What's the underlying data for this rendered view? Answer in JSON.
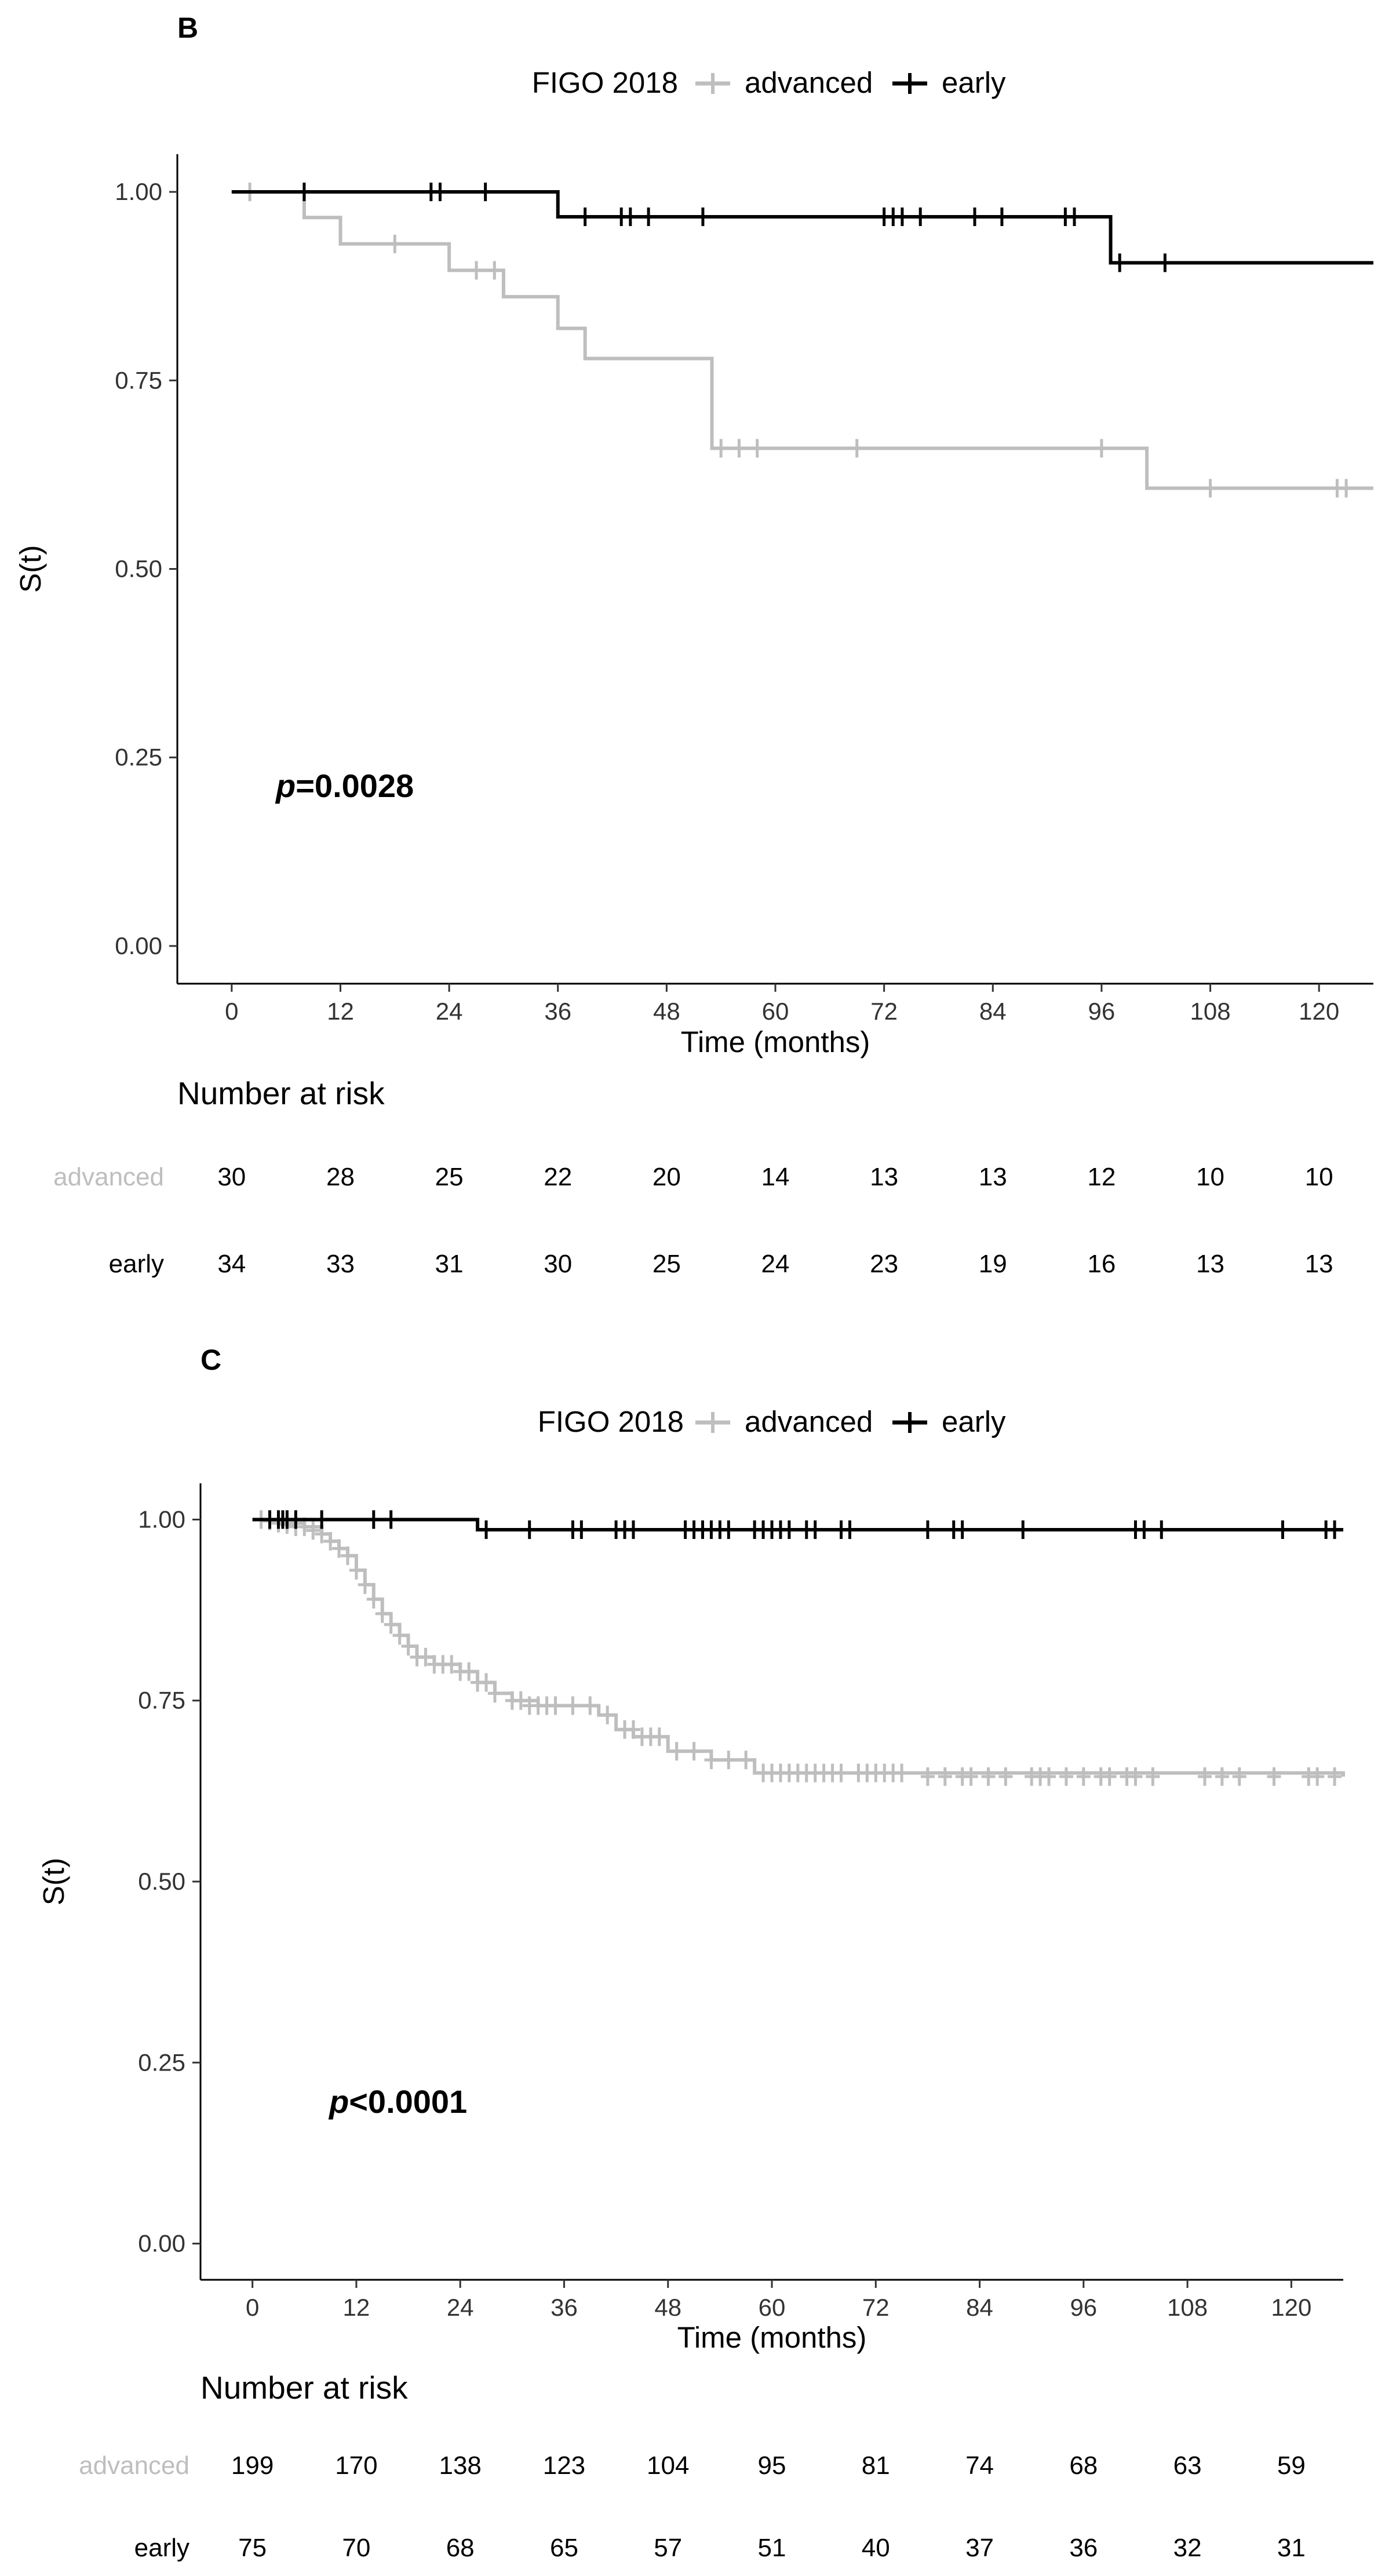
{
  "colors": {
    "advanced": "#bebebe",
    "early": "#000000"
  },
  "panels": [
    {
      "id": "B",
      "letter": "B",
      "legend": {
        "title": "FIGO 2018",
        "labels": [
          "advanced",
          "early"
        ]
      },
      "xlabel": "Time (months)",
      "ylabel": "S(t)",
      "p_value": {
        "p": "p",
        "rest": "=0.0028"
      },
      "risk_table": {
        "title": "Number at risk",
        "labels": [
          "advanced",
          "early"
        ],
        "times": [
          0,
          12,
          24,
          36,
          48,
          60,
          72,
          84,
          96,
          108,
          120
        ],
        "advanced": [
          "30",
          "28",
          "25",
          "22",
          "20",
          "14",
          "13",
          "13",
          "12",
          "10",
          "10"
        ],
        "early": [
          "34",
          "33",
          "31",
          "30",
          "25",
          "24",
          "23",
          "19",
          "16",
          "13",
          "13"
        ]
      }
    },
    {
      "id": "C",
      "letter": "C",
      "legend": {
        "title": "FIGO 2018",
        "labels": [
          "advanced",
          "early"
        ]
      },
      "xlabel": "Time (months)",
      "ylabel": "S(t)",
      "p_value": {
        "p": "p",
        "rest": "<0.0001"
      },
      "risk_table": {
        "title": "Number at risk",
        "labels": [
          "advanced",
          "early"
        ],
        "times": [
          0,
          12,
          24,
          36,
          48,
          60,
          72,
          84,
          96,
          108,
          120
        ],
        "advanced": [
          "199",
          "170",
          "138",
          "123",
          "104",
          "95",
          "81",
          "74",
          "68",
          "63",
          "59"
        ],
        "early": [
          "75",
          "70",
          "68",
          "65",
          "57",
          "51",
          "40",
          "37",
          "36",
          "32",
          "31"
        ]
      }
    }
  ],
  "chart_data": [
    {
      "type": "line",
      "step": true,
      "xlim": [
        -6,
        126
      ],
      "ylim": [
        -0.05,
        1.05
      ],
      "xticks": [
        0,
        12,
        24,
        36,
        48,
        60,
        72,
        84,
        96,
        108,
        120
      ],
      "yticks": [
        0.0,
        0.25,
        0.5,
        0.75,
        1.0
      ],
      "ytick_labels": [
        "0.00",
        "0.25",
        "0.50",
        "0.75",
        "1.00"
      ],
      "grid": false,
      "legend_position": "top",
      "series": [
        {
          "name": "advanced",
          "x": [
            0,
            8,
            12,
            24,
            30,
            36,
            39,
            53,
            54,
            101,
            126
          ],
          "y": [
            1.0,
            0.966,
            0.931,
            0.896,
            0.861,
            0.819,
            0.779,
            0.66,
            0.66,
            0.607,
            0.607
          ],
          "censor_x": [
            2,
            18,
            27,
            29,
            54,
            56,
            58,
            69,
            96,
            108,
            122,
            123
          ],
          "censor_y": [
            1.0,
            0.931,
            0.896,
            0.896,
            0.66,
            0.66,
            0.66,
            0.66,
            0.66,
            0.607,
            0.607,
            0.607
          ]
        },
        {
          "name": "early",
          "x": [
            0,
            36,
            97,
            126
          ],
          "y": [
            1.0,
            0.967,
            0.906,
            0.906
          ],
          "censor_x": [
            8,
            22,
            23,
            28,
            39,
            43,
            44,
            46,
            52,
            72,
            73,
            74,
            76,
            82,
            85,
            92,
            93,
            98,
            103
          ],
          "censor_y": [
            1.0,
            1.0,
            1.0,
            1.0,
            0.967,
            0.967,
            0.967,
            0.967,
            0.967,
            0.967,
            0.967,
            0.967,
            0.967,
            0.967,
            0.967,
            0.967,
            0.967,
            0.906,
            0.906
          ]
        }
      ]
    },
    {
      "type": "line",
      "step": true,
      "xlim": [
        -6,
        126
      ],
      "ylim": [
        -0.05,
        1.05
      ],
      "xticks": [
        0,
        12,
        24,
        36,
        48,
        60,
        72,
        84,
        96,
        108,
        120
      ],
      "yticks": [
        0.0,
        0.25,
        0.5,
        0.75,
        1.0
      ],
      "ytick_labels": [
        "0.00",
        "0.25",
        "0.50",
        "0.75",
        "1.00"
      ],
      "grid": false,
      "legend_position": "top",
      "series": [
        {
          "name": "advanced",
          "x": [
            0,
            3,
            6,
            8,
            9,
            10,
            11,
            12,
            13,
            14,
            15,
            16,
            17,
            18,
            19,
            21,
            24,
            26,
            28,
            30,
            33,
            40,
            42,
            44,
            48,
            53,
            58,
            126
          ],
          "y": [
            1.0,
            0.995,
            0.99,
            0.98,
            0.97,
            0.96,
            0.95,
            0.93,
            0.91,
            0.89,
            0.87,
            0.855,
            0.84,
            0.825,
            0.81,
            0.8,
            0.79,
            0.775,
            0.76,
            0.75,
            0.743,
            0.73,
            0.71,
            0.7,
            0.68,
            0.668,
            0.65,
            0.645
          ],
          "censor_x": [
            1,
            2,
            3,
            4,
            5,
            6,
            7,
            8,
            9,
            10,
            11,
            12,
            13,
            14,
            15,
            16,
            17,
            18,
            19,
            20,
            21,
            22,
            23,
            24,
            25,
            26,
            27,
            28,
            30,
            31,
            32,
            33,
            34,
            35,
            37,
            39,
            41,
            43,
            44,
            45,
            46,
            47,
            49,
            51,
            53,
            55,
            57,
            59,
            60,
            61,
            62,
            63,
            64,
            65,
            66,
            67,
            68,
            70,
            71,
            72,
            73,
            74,
            75,
            78,
            80,
            82,
            83,
            85,
            87,
            90,
            91,
            92,
            94,
            96,
            98,
            99,
            101,
            102,
            104,
            110,
            112,
            114,
            118,
            122,
            123,
            125
          ],
          "censor_y": [
            1.0,
            0.998,
            0.995,
            0.993,
            0.99,
            0.99,
            0.985,
            0.98,
            0.97,
            0.96,
            0.95,
            0.93,
            0.91,
            0.89,
            0.87,
            0.855,
            0.84,
            0.825,
            0.81,
            0.81,
            0.8,
            0.8,
            0.8,
            0.79,
            0.79,
            0.775,
            0.775,
            0.76,
            0.75,
            0.75,
            0.743,
            0.743,
            0.743,
            0.743,
            0.743,
            0.743,
            0.73,
            0.71,
            0.71,
            0.7,
            0.7,
            0.7,
            0.68,
            0.68,
            0.668,
            0.668,
            0.668,
            0.65,
            0.65,
            0.65,
            0.65,
            0.65,
            0.65,
            0.65,
            0.65,
            0.65,
            0.65,
            0.65,
            0.65,
            0.65,
            0.65,
            0.65,
            0.65,
            0.645,
            0.645,
            0.645,
            0.645,
            0.645,
            0.645,
            0.645,
            0.645,
            0.645,
            0.645,
            0.645,
            0.645,
            0.645,
            0.645,
            0.645,
            0.645,
            0.645,
            0.645,
            0.645,
            0.645,
            0.645,
            0.645,
            0.645
          ]
        },
        {
          "name": "early",
          "x": [
            0,
            26,
            126
          ],
          "y": [
            1.0,
            0.986,
            0.986
          ],
          "censor_x": [
            2,
            3,
            3.5,
            4,
            5,
            8,
            14,
            16,
            27,
            32,
            37,
            38,
            42,
            43,
            44,
            50,
            51,
            52,
            53,
            54,
            55,
            58,
            59,
            60,
            61,
            62,
            64,
            65,
            68,
            69,
            78,
            81,
            82,
            89,
            102,
            103,
            105,
            119,
            124,
            125
          ],
          "censor_y": [
            1.0,
            1.0,
            1.0,
            1.0,
            1.0,
            1.0,
            1.0,
            1.0,
            0.986,
            0.986,
            0.986,
            0.986,
            0.986,
            0.986,
            0.986,
            0.986,
            0.986,
            0.986,
            0.986,
            0.986,
            0.986,
            0.986,
            0.986,
            0.986,
            0.986,
            0.986,
            0.986,
            0.986,
            0.986,
            0.986,
            0.986,
            0.986,
            0.986,
            0.986,
            0.986,
            0.986,
            0.986,
            0.986,
            0.986,
            0.986
          ]
        }
      ]
    }
  ]
}
